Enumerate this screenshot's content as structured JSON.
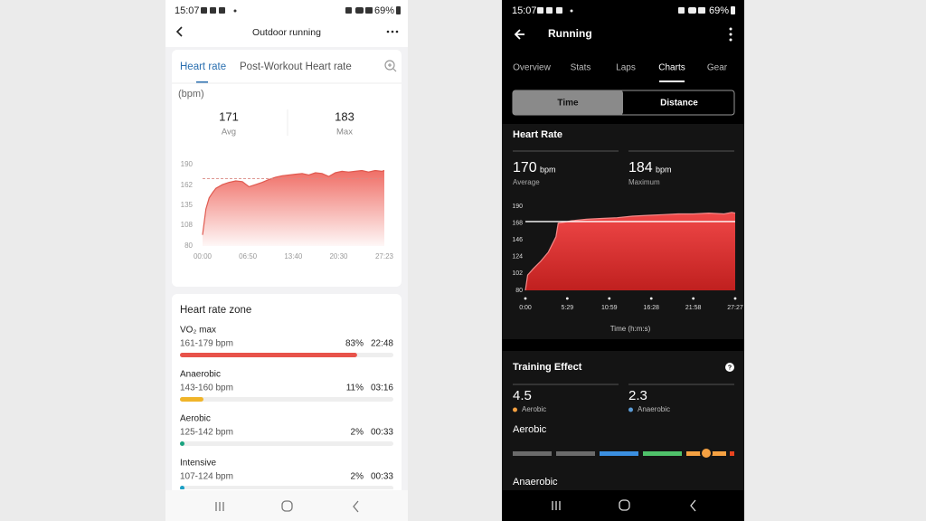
{
  "left": {
    "status": {
      "time": "15:07",
      "battery": "69%"
    },
    "title": "Outdoor running",
    "tabs": [
      "Heart rate",
      "Post-Workout Heart rate"
    ],
    "unit": "(bpm)",
    "stats": [
      {
        "value": 171,
        "label": "Avg"
      },
      {
        "value": 183,
        "label": "Max"
      }
    ],
    "chart_data": {
      "type": "area",
      "x": [
        0,
        0.5,
        1,
        1.5,
        2,
        3,
        4,
        5,
        6,
        7,
        8,
        9,
        10,
        11,
        12,
        13,
        14,
        15,
        16,
        17,
        18,
        19,
        20,
        21,
        22,
        23,
        24,
        25,
        26,
        27,
        27.38
      ],
      "values": [
        95,
        130,
        145,
        152,
        158,
        163,
        166,
        168,
        167,
        160,
        163,
        166,
        170,
        173,
        175,
        176,
        177,
        178,
        176,
        179,
        178,
        174,
        179,
        181,
        180,
        181,
        182,
        180,
        182,
        181,
        182
      ],
      "xlim": [
        0,
        27.38
      ],
      "ylim": [
        80,
        190
      ],
      "yticks": [
        190,
        162,
        135,
        108,
        80
      ],
      "xticks": [
        {
          "value": 0,
          "label": "00:00"
        },
        {
          "value": 6.83,
          "label": "06:50"
        },
        {
          "value": 13.67,
          "label": "13:40"
        },
        {
          "value": 20.5,
          "label": "20:30"
        },
        {
          "value": 27.38,
          "label": "27:23"
        }
      ],
      "color": "#e05a50"
    },
    "zones": {
      "title": "Heart rate zone",
      "type": "bar",
      "categories": [
        "VO₂ max",
        "Anaerobic",
        "Aerobic",
        "Intensive"
      ],
      "ranges": [
        "161-179 bpm",
        "143-160 bpm",
        "125-142 bpm",
        "107-124 bpm"
      ],
      "values": [
        83,
        11,
        2,
        2
      ],
      "value_labels": [
        "83%",
        "11%",
        "2%",
        "2%"
      ],
      "times": [
        "22:48",
        "03:16",
        "00:33",
        "00:33"
      ],
      "colors": [
        "#e8534a",
        "#f0b429",
        "#1aa37f",
        "#1c9fc4"
      ]
    }
  },
  "right": {
    "status": {
      "time": "15:07",
      "battery": "69%"
    },
    "title": "Running",
    "tabs": [
      "Overview",
      "Stats",
      "Laps",
      "Charts",
      "Gear"
    ],
    "toggle": [
      "Time",
      "Distance"
    ],
    "section": "Heart Rate",
    "stats": [
      {
        "value": 170,
        "unit": "bpm",
        "label": "Average"
      },
      {
        "value": 184,
        "unit": "bpm",
        "label": "Maximum"
      }
    ],
    "chart_data": {
      "type": "area",
      "x": [
        0,
        0.3,
        1,
        2,
        3,
        4,
        4.3,
        5,
        6,
        8,
        10,
        12,
        14,
        16,
        18,
        20,
        22,
        24,
        26,
        27,
        27.45
      ],
      "values": [
        80,
        100,
        108,
        118,
        130,
        150,
        168,
        169,
        171,
        173,
        174,
        175,
        177,
        178,
        179,
        180,
        180,
        181,
        180,
        182,
        181
      ],
      "xlim": [
        0,
        27.45
      ],
      "ylim": [
        80,
        190
      ],
      "yticks": [
        190,
        168,
        146,
        124,
        102,
        80
      ],
      "xticks": [
        {
          "value": 0,
          "label": "0:00"
        },
        {
          "value": 5.48,
          "label": "5:29"
        },
        {
          "value": 10.98,
          "label": "10:59"
        },
        {
          "value": 16.47,
          "label": "16:28"
        },
        {
          "value": 21.97,
          "label": "21:58"
        },
        {
          "value": 27.45,
          "label": "27:27"
        }
      ],
      "xlabel": "Time (h:m:s)",
      "color": "#e53935"
    },
    "training": {
      "title": "Training Effect",
      "stats": [
        {
          "value": 4.5,
          "label": "Aerobic",
          "color": "#f5a142"
        },
        {
          "value": 2.3,
          "label": "Anaerobic",
          "color": "#5b9bd5"
        }
      ],
      "gauge_label": "Aerobic",
      "next_label": "Anaerobic"
    }
  }
}
